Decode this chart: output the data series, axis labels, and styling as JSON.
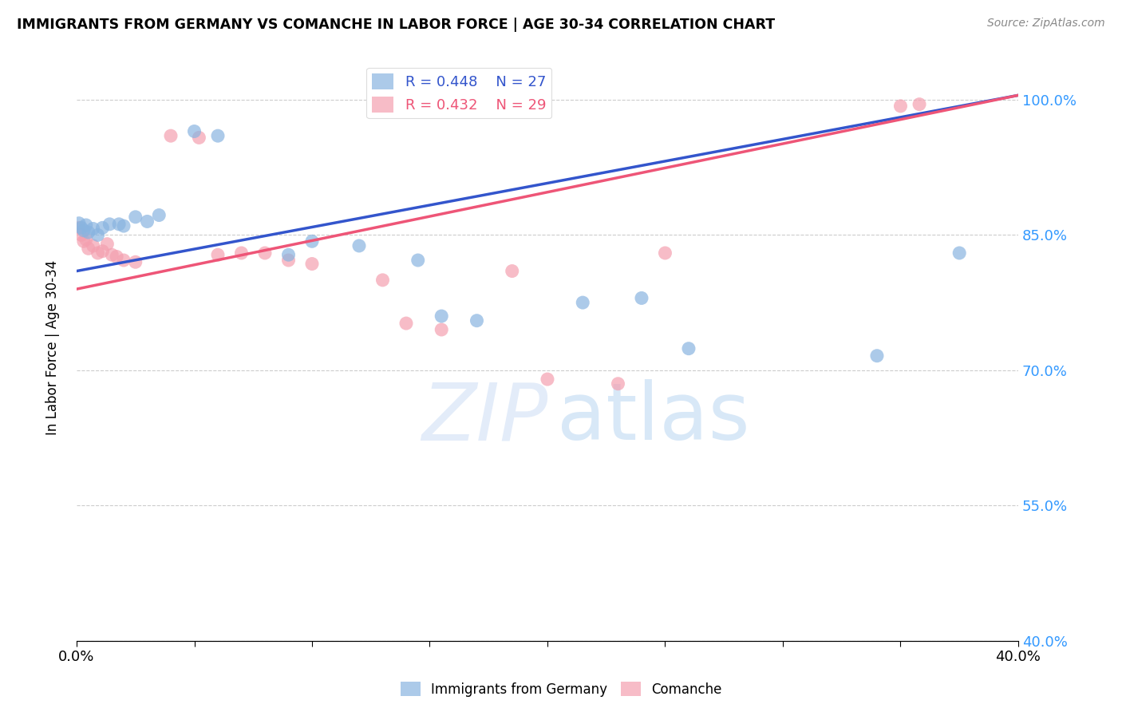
{
  "title": "IMMIGRANTS FROM GERMANY VS COMANCHE IN LABOR FORCE | AGE 30-34 CORRELATION CHART",
  "source": "Source: ZipAtlas.com",
  "ylabel": "In Labor Force | Age 30-34",
  "background_color": "#ffffff",
  "watermark_zip": "ZIP",
  "watermark_atlas": "atlas",
  "blue_R": 0.448,
  "blue_N": 27,
  "pink_R": 0.432,
  "pink_N": 29,
  "blue_color": "#89b4e0",
  "pink_color": "#f4a0b0",
  "blue_line_color": "#3355cc",
  "pink_line_color": "#ee5577",
  "xmin": 0.0,
  "xmax": 0.4,
  "ymin": 0.4,
  "ymax": 1.05,
  "yticks": [
    0.4,
    0.55,
    0.7,
    0.85,
    1.0
  ],
  "ytick_labels": [
    "40.0%",
    "55.0%",
    "70.0%",
    "85.0%",
    "100.0%"
  ],
  "xtick_labels": [
    "0.0%",
    "",
    "",
    "",
    "",
    "",
    "",
    "",
    "40.0%"
  ],
  "blue_line_x0": 0.0,
  "blue_line_y0": 0.81,
  "blue_line_x1": 0.4,
  "blue_line_y1": 1.005,
  "pink_line_x0": 0.0,
  "pink_line_y0": 0.79,
  "pink_line_x1": 0.4,
  "pink_line_y1": 1.005,
  "blue_x": [
    0.001,
    0.002,
    0.003,
    0.004,
    0.005,
    0.007,
    0.009,
    0.011,
    0.014,
    0.018,
    0.02,
    0.025,
    0.03,
    0.035,
    0.05,
    0.06,
    0.09,
    0.1,
    0.12,
    0.145,
    0.155,
    0.17,
    0.215,
    0.24,
    0.26,
    0.34,
    0.375
  ],
  "blue_y": [
    0.863,
    0.858,
    0.855,
    0.861,
    0.853,
    0.857,
    0.85,
    0.858,
    0.862,
    0.862,
    0.86,
    0.87,
    0.865,
    0.872,
    0.965,
    0.96,
    0.828,
    0.843,
    0.838,
    0.822,
    0.76,
    0.755,
    0.775,
    0.78,
    0.724,
    0.716,
    0.83
  ],
  "pink_x": [
    0.001,
    0.002,
    0.003,
    0.004,
    0.005,
    0.007,
    0.009,
    0.011,
    0.013,
    0.015,
    0.017,
    0.02,
    0.025,
    0.04,
    0.052,
    0.06,
    0.07,
    0.08,
    0.09,
    0.1,
    0.13,
    0.14,
    0.155,
    0.185,
    0.2,
    0.23,
    0.25,
    0.35,
    0.358
  ],
  "pink_y": [
    0.858,
    0.85,
    0.843,
    0.845,
    0.835,
    0.838,
    0.83,
    0.832,
    0.84,
    0.828,
    0.826,
    0.822,
    0.82,
    0.96,
    0.958,
    0.828,
    0.83,
    0.83,
    0.822,
    0.818,
    0.8,
    0.752,
    0.745,
    0.81,
    0.69,
    0.685,
    0.83,
    0.993,
    0.995
  ]
}
